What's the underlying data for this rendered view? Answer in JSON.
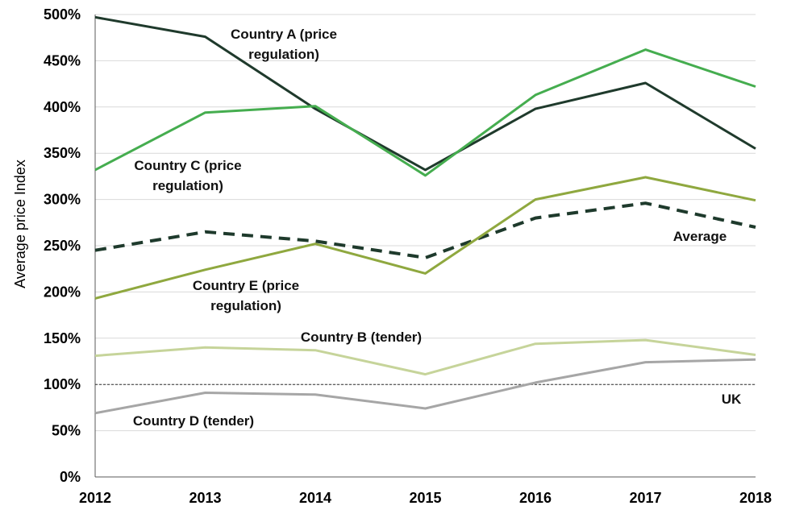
{
  "chart_data": {
    "type": "line",
    "xlabel": "",
    "ylabel": "Average price Index",
    "x": [
      2012,
      2013,
      2014,
      2015,
      2016,
      2017,
      2018
    ],
    "x_tick_labels": [
      "2012",
      "2013",
      "2014",
      "2015",
      "2016",
      "2017",
      "2018"
    ],
    "ylim": [
      0,
      500
    ],
    "y_ticks": [
      0,
      50,
      100,
      150,
      200,
      250,
      300,
      350,
      400,
      450,
      500
    ],
    "y_tick_labels": [
      "0%",
      "50%",
      "100%",
      "150%",
      "200%",
      "250%",
      "300%",
      "350%",
      "400%",
      "450%",
      "500%"
    ],
    "grid": "horizontal",
    "reference_line": {
      "value": 100,
      "label": "UK",
      "style": "dashed",
      "color": "#333333"
    },
    "series": [
      {
        "name": "Country A (price regulation)",
        "label_lines": [
          "Country A (price",
          "regulation)"
        ],
        "color": "#1f3a2c",
        "dashed": false,
        "values": [
          497,
          476,
          398,
          332,
          398,
          426,
          355
        ]
      },
      {
        "name": "Country C (price regulation)",
        "label_lines": [
          "Country C (price",
          "regulation)"
        ],
        "color": "#45ad4f",
        "dashed": false,
        "values": [
          332,
          394,
          401,
          326,
          413,
          462,
          422
        ]
      },
      {
        "name": "Average",
        "label_lines": [
          "Average"
        ],
        "color": "#1e3a2c",
        "dashed": true,
        "values": [
          245,
          265,
          255,
          237,
          280,
          296,
          270
        ]
      },
      {
        "name": "Country E (price regulation)",
        "label_lines": [
          "Country E (price",
          "regulation)"
        ],
        "color": "#8fa83f",
        "dashed": false,
        "values": [
          193,
          224,
          252,
          220,
          300,
          324,
          299
        ]
      },
      {
        "name": "Country B (tender)",
        "label_lines": [
          "Country B (tender)"
        ],
        "color": "#c6d49a",
        "dashed": false,
        "values": [
          131,
          140,
          137,
          111,
          144,
          148,
          132
        ]
      },
      {
        "name": "Country D (tender)",
        "label_lines": [
          "Country D (tender)"
        ],
        "color": "#a6a6a6",
        "dashed": false,
        "values": [
          69,
          91,
          89,
          74,
          102,
          124,
          127
        ]
      }
    ]
  }
}
